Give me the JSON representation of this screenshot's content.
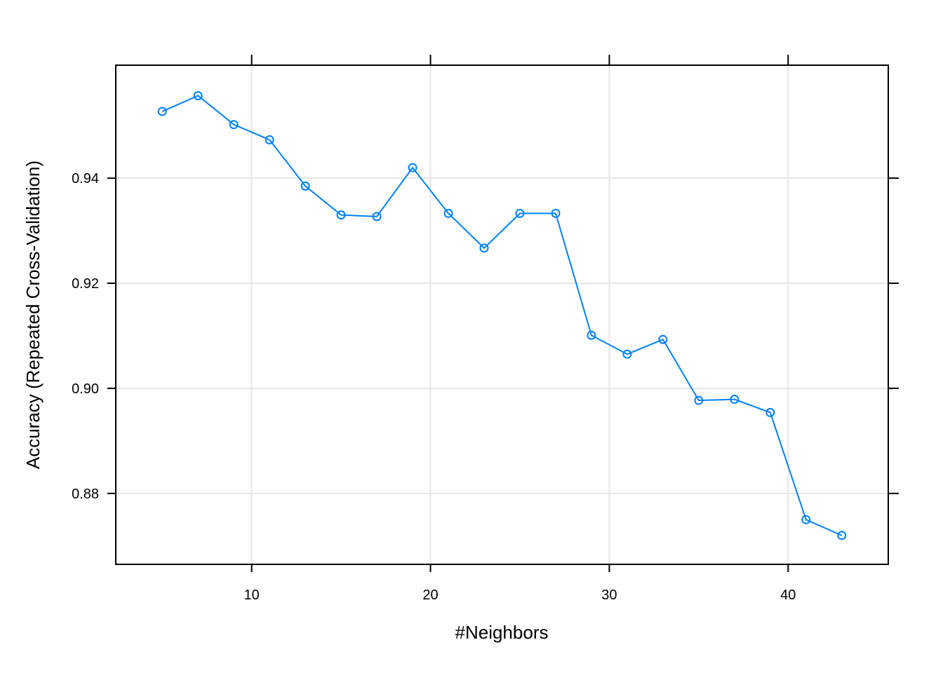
{
  "chart_data": {
    "type": "line",
    "title": "",
    "xlabel": "#Neighbors",
    "ylabel": "Accuracy (Repeated Cross-Validation)",
    "xlim": [
      2.4,
      45.6
    ],
    "ylim": [
      0.8665,
      0.9615
    ],
    "x_ticks": [
      10,
      20,
      30,
      40
    ],
    "x_tick_labels": [
      "10",
      "20",
      "30",
      "40"
    ],
    "y_ticks": [
      0.88,
      0.9,
      0.92,
      0.94
    ],
    "y_tick_labels": [
      "0.88",
      "0.90",
      "0.92",
      "0.94"
    ],
    "grid": true,
    "series_color": "#0080ff",
    "series": [
      {
        "x": [
          5,
          7,
          9,
          11,
          13,
          15,
          17,
          19,
          21,
          23,
          25,
          27,
          29,
          31,
          33,
          35,
          37,
          39,
          41,
          43
        ],
        "values": [
          0.9527,
          0.9557,
          0.9502,
          0.9473,
          0.9385,
          0.933,
          0.9327,
          0.942,
          0.9333,
          0.9267,
          0.9333,
          0.9333,
          0.9101,
          0.9065,
          0.9093,
          0.8977,
          0.8979,
          0.8954,
          0.875,
          0.872
        ]
      }
    ]
  }
}
